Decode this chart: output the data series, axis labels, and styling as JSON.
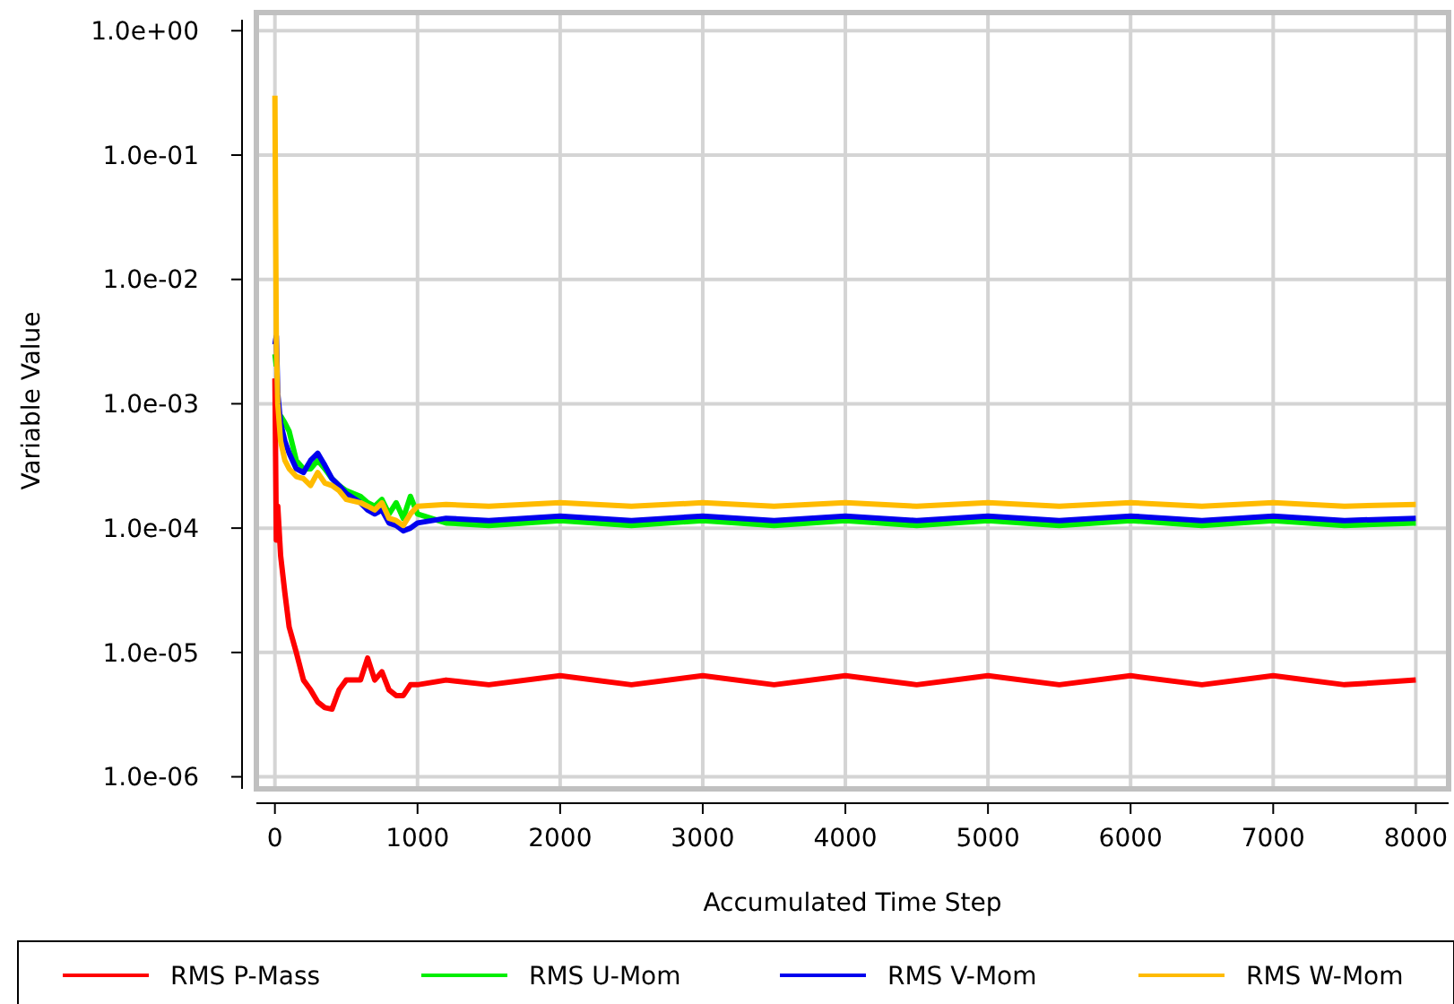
{
  "chart_data": {
    "type": "line",
    "xlabel": "Accumulated Time Step",
    "ylabel": "Variable Value",
    "log": "y",
    "grid": true,
    "legend": "bottom",
    "marker": "none",
    "line_style": "solid",
    "x": [
      0,
      10,
      20,
      40,
      70,
      100,
      150,
      200,
      250,
      300,
      350,
      400,
      450,
      500,
      600,
      650,
      700,
      750,
      800,
      850,
      900,
      950,
      1000,
      1200,
      1500,
      2000,
      2500,
      3000,
      3500,
      4000,
      4500,
      5000,
      5500,
      6000,
      6500,
      7000,
      7500,
      8000
    ],
    "xlim": [
      -130,
      8230
    ],
    "xticks": [
      0,
      1000,
      2000,
      3000,
      4000,
      5000,
      6000,
      7000,
      8000
    ],
    "ylim": [
      8e-07,
      1.4
    ],
    "yticks": [
      {
        "value": 1,
        "label": "1.0e+00"
      },
      {
        "value": 0.1,
        "label": "1.0e-01"
      },
      {
        "value": 0.01,
        "label": "1.0e-02"
      },
      {
        "value": 0.001,
        "label": "1.0e-03"
      },
      {
        "value": 0.0001,
        "label": "1.0e-04"
      },
      {
        "value": 1e-05,
        "label": "1.0e-05"
      },
      {
        "value": 1e-06,
        "label": "1.0e-06"
      }
    ],
    "series": [
      {
        "name": "RMS P-Mass",
        "color": "#ff0000",
        "values": [
          0.0016,
          8e-05,
          0.00015,
          6e-05,
          3e-05,
          1.6e-05,
          1e-05,
          6e-06,
          5e-06,
          4e-06,
          3.6e-06,
          3.5e-06,
          5e-06,
          6e-06,
          6e-06,
          9e-06,
          6e-06,
          7e-06,
          5e-06,
          4.5e-06,
          4.5e-06,
          5.5e-06,
          5.5e-06,
          6e-06,
          5.5e-06,
          6.5e-06,
          5.5e-06,
          6.5e-06,
          5.5e-06,
          6.5e-06,
          5.5e-06,
          6.5e-06,
          5.5e-06,
          6.5e-06,
          5.5e-06,
          6.5e-06,
          5.5e-06,
          6e-06
        ]
      },
      {
        "name": "RMS U-Mom",
        "color": "#00ee00",
        "values": [
          0.0025,
          0.002,
          null,
          0.0008,
          0.0007,
          0.0006,
          0.00035,
          0.0003,
          0.0003,
          0.00035,
          0.0003,
          0.00025,
          0.00022,
          0.0002,
          0.00018,
          0.00016,
          0.00015,
          0.00017,
          0.00013,
          0.00016,
          0.00012,
          0.00018,
          0.00013,
          0.00011,
          0.000105,
          0.000115,
          0.000105,
          0.000115,
          0.000105,
          0.000115,
          0.000105,
          0.000115,
          0.000105,
          0.000115,
          0.000105,
          0.000115,
          0.000105,
          0.00011
        ]
      },
      {
        "name": "RMS V-Mom",
        "color": "#0000ee",
        "values": [
          0.003,
          0.0035,
          0.0012,
          0.0007,
          0.0005,
          0.0004,
          0.0003,
          0.00028,
          0.00035,
          0.0004,
          0.00032,
          0.00025,
          0.00022,
          0.00019,
          0.00016,
          0.00014,
          0.00013,
          0.00014,
          0.00011,
          0.000105,
          9.5e-05,
          0.0001,
          0.00011,
          0.00012,
          0.000115,
          0.000125,
          0.000115,
          0.000125,
          0.000115,
          0.000125,
          0.000115,
          0.000125,
          0.000115,
          0.000125,
          0.000115,
          0.000125,
          0.000115,
          0.00012
        ]
      },
      {
        "name": "RMS W-Mom",
        "color": "#ffbb00",
        "values": [
          0.3,
          0.003,
          0.001,
          0.0005,
          0.00035,
          0.0003,
          0.00026,
          0.00025,
          0.00022,
          0.00028,
          0.00023,
          0.00022,
          0.0002,
          0.00017,
          0.00016,
          0.00015,
          0.00014,
          0.00016,
          0.00012,
          0.000115,
          0.000105,
          0.00013,
          0.00015,
          0.000155,
          0.00015,
          0.00016,
          0.00015,
          0.00016,
          0.00015,
          0.00016,
          0.00015,
          0.00016,
          0.00015,
          0.00016,
          0.00015,
          0.00016,
          0.00015,
          0.000155
        ]
      }
    ]
  }
}
